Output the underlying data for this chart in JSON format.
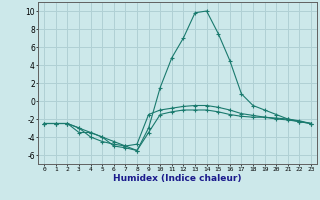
{
  "xlabel": "Humidex (Indice chaleur)",
  "background_color": "#cce8ea",
  "grid_color": "#b0d0d4",
  "line_color": "#1a7a6e",
  "xlim": [
    -0.5,
    23.5
  ],
  "ylim": [
    -7,
    11
  ],
  "xticks": [
    0,
    1,
    2,
    3,
    4,
    5,
    6,
    7,
    8,
    9,
    10,
    11,
    12,
    13,
    14,
    15,
    16,
    17,
    18,
    19,
    20,
    21,
    22,
    23
  ],
  "yticks": [
    -6,
    -4,
    -2,
    0,
    2,
    4,
    6,
    8,
    10
  ],
  "series": [
    {
      "x": [
        0,
        1,
        2,
        3,
        4,
        5,
        6,
        7,
        8,
        9,
        10,
        11,
        12,
        13,
        14,
        15,
        16,
        17,
        18,
        19,
        20,
        21,
        22,
        23
      ],
      "y": [
        -2.5,
        -2.5,
        -2.5,
        -3.5,
        -3.5,
        -4.0,
        -5.0,
        -5.2,
        -5.5,
        -3.5,
        -1.5,
        -1.2,
        -1.0,
        -1.0,
        -1.0,
        -1.2,
        -1.5,
        -1.7,
        -1.8,
        -1.8,
        -1.9,
        -2.0,
        -2.2,
        -2.5
      ]
    },
    {
      "x": [
        0,
        1,
        2,
        3,
        4,
        5,
        6,
        7,
        8,
        9,
        10,
        11,
        12,
        13,
        14,
        15,
        16,
        17,
        18,
        19,
        20,
        21,
        22,
        23
      ],
      "y": [
        -2.5,
        -2.5,
        -2.5,
        -3.0,
        -3.5,
        -4.0,
        -4.5,
        -5.0,
        -5.5,
        -3.0,
        1.5,
        4.8,
        7.0,
        9.8,
        10.0,
        7.5,
        4.5,
        0.8,
        -0.5,
        -1.0,
        -1.5,
        -2.0,
        -2.3,
        -2.5
      ]
    },
    {
      "x": [
        0,
        1,
        2,
        3,
        4,
        5,
        6,
        7,
        8,
        9,
        10,
        11,
        12,
        13,
        14,
        15,
        16,
        17,
        18,
        19,
        20,
        21,
        22,
        23
      ],
      "y": [
        -2.5,
        -2.5,
        -2.5,
        -3.0,
        -4.0,
        -4.5,
        -4.8,
        -5.0,
        -4.8,
        -1.5,
        -1.0,
        -0.8,
        -0.6,
        -0.5,
        -0.5,
        -0.7,
        -1.0,
        -1.4,
        -1.6,
        -1.8,
        -2.0,
        -2.1,
        -2.3,
        -2.5
      ]
    }
  ]
}
